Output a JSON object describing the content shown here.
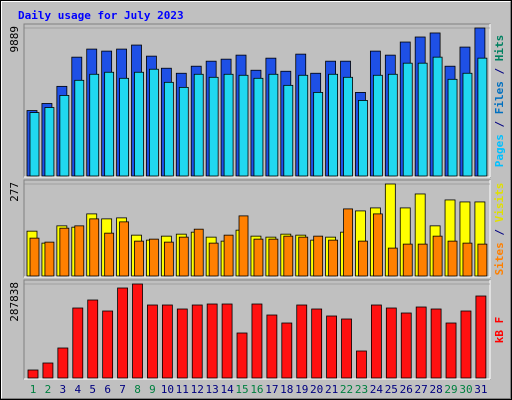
{
  "title": "Daily usage for July 2023",
  "chart_data": [
    {
      "type": "bar",
      "series": [
        {
          "color": "#1e50e6",
          "values": [
            4374,
            4846,
            5990,
            7941,
            8480,
            8345,
            8480,
            8749,
            8009,
            7201,
            6865,
            7336,
            7672,
            7807,
            8076,
            7067,
            7874,
            6999,
            8143,
            6865,
            7672,
            7672,
            5586,
            8345,
            8076,
            8951,
            9287,
            9557,
            7336,
            8614,
            9889
          ]
        },
        {
          "color": "#20d8f0",
          "values": [
            4240,
            4576,
            5384,
            6394,
            6797,
            6932,
            6528,
            6932,
            7134,
            6259,
            5922,
            6797,
            6595,
            6797,
            6730,
            6528,
            6797,
            6057,
            6730,
            5586,
            6797,
            6595,
            5048,
            6730,
            6797,
            7538,
            7538,
            7941,
            6461,
            6865,
            7874
          ]
        }
      ],
      "legend": [
        {
          "text": "Pages",
          "color": "#00c0ff"
        },
        {
          "text": " / ",
          "color": "#000080"
        },
        {
          "text": "Files",
          "color": "#0070c0"
        },
        {
          "text": " / ",
          "color": "#000080"
        },
        {
          "text": "Hits",
          "color": "#008060"
        }
      ],
      "ylim": [
        0,
        9889
      ],
      "yticks": [
        9889
      ]
    },
    {
      "type": "bar",
      "series": [
        {
          "color": "#ffff00",
          "values": [
            135,
            99,
            151,
            147,
            187,
            172,
            175,
            123,
            108,
            120,
            126,
            132,
            117,
            105,
            138,
            120,
            117,
            126,
            123,
            108,
            117,
            132,
            196,
            205,
            277,
            205,
            247,
            151,
            229,
            223,
            223
          ]
        },
        {
          "color": "#ff8000",
          "values": [
            114,
            102,
            144,
            151,
            172,
            129,
            163,
            105,
            111,
            102,
            117,
            141,
            99,
            123,
            181,
            111,
            111,
            120,
            117,
            120,
            108,
            202,
            105,
            187,
            84,
            96,
            96,
            120,
            105,
            99,
            96
          ]
        }
      ],
      "legend": [
        {
          "text": "Sites",
          "color": "#ff8000"
        },
        {
          "text": " / ",
          "color": "#000080"
        },
        {
          "text": "Visits",
          "color": "#e0e000"
        }
      ],
      "ylim": [
        0,
        277
      ],
      "yticks": [
        277
      ]
    },
    {
      "type": "bar",
      "series": [
        {
          "color": "#ff1010",
          "values": [
            24496,
            45930,
            91860,
            214340,
            238836,
            205154,
            275580,
            287838,
            223526,
            223526,
            211278,
            223526,
            226588,
            226588,
            137790,
            226588,
            192906,
            168410,
            223526,
            211278,
            189844,
            180658,
            82674,
            223526,
            214340,
            199030,
            217402,
            211278,
            168410,
            205154,
            251084
          ]
        }
      ],
      "legend": [
        {
          "text": "kB F",
          "color": "#ff0000"
        }
      ],
      "ylim": [
        0,
        287838
      ],
      "yticks": [
        287838
      ],
      "categories": [
        "1",
        "2",
        "3",
        "4",
        "5",
        "6",
        "7",
        "8",
        "9",
        "10",
        "11",
        "12",
        "13",
        "14",
        "15",
        "16",
        "17",
        "18",
        "19",
        "20",
        "21",
        "22",
        "23",
        "24",
        "25",
        "26",
        "27",
        "28",
        "29",
        "30",
        "31"
      ],
      "category_colors": [
        "#008040",
        "#008040",
        "#000080",
        "#000080",
        "#000080",
        "#000080",
        "#000080",
        "#008040",
        "#008040",
        "#000080",
        "#000080",
        "#000080",
        "#000080",
        "#000080",
        "#008040",
        "#008040",
        "#000080",
        "#000080",
        "#000080",
        "#000080",
        "#000080",
        "#008040",
        "#008040",
        "#000080",
        "#000080",
        "#000080",
        "#000080",
        "#000080",
        "#008040",
        "#008040",
        "#000080"
      ]
    }
  ]
}
